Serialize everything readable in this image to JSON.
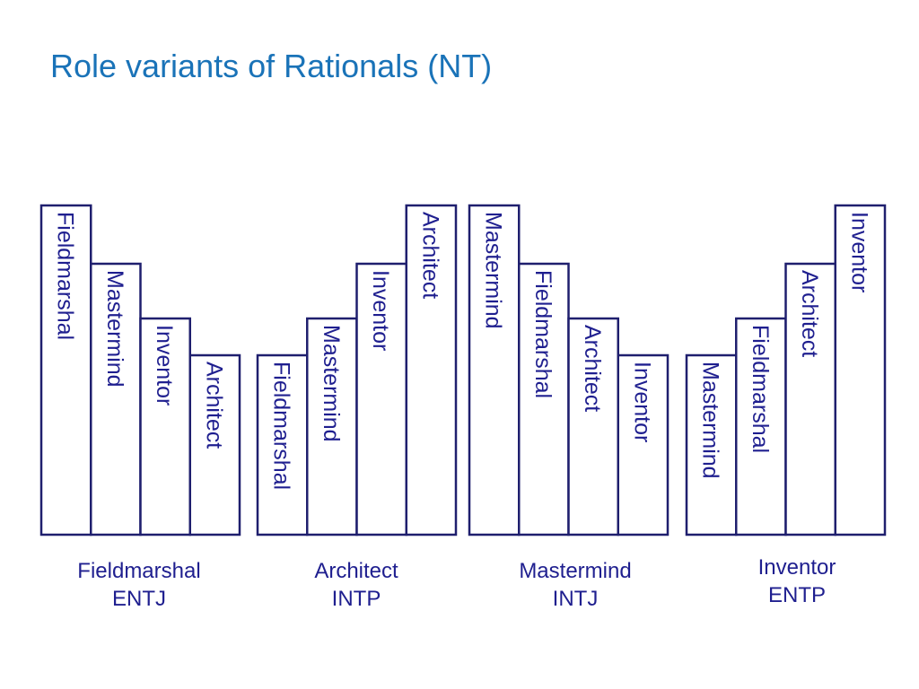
{
  "title": "Role variants of Rationals (NT)",
  "colors": {
    "title": "#1a73b8",
    "text": "#1f1f8f",
    "stroke": "#1f1f6e"
  },
  "groups": [
    {
      "type": "Fieldmarshal",
      "code": "ENTJ",
      "bars": [
        {
          "label": "Fieldmarshal",
          "rank": 4
        },
        {
          "label": "Mastermind",
          "rank": 3
        },
        {
          "label": "Inventor",
          "rank": 2
        },
        {
          "label": "Architect",
          "rank": 1
        }
      ]
    },
    {
      "type": "Architect",
      "code": "INTP",
      "bars": [
        {
          "label": "Fieldmarshal",
          "rank": 1
        },
        {
          "label": "Mastermind",
          "rank": 2
        },
        {
          "label": "Inventor",
          "rank": 3
        },
        {
          "label": "Architect",
          "rank": 4
        }
      ]
    },
    {
      "type": "Mastermind",
      "code": "INTJ",
      "bars": [
        {
          "label": "Mastermind",
          "rank": 4
        },
        {
          "label": "Fieldmarshal",
          "rank": 3
        },
        {
          "label": "Architect",
          "rank": 2
        },
        {
          "label": "Inventor",
          "rank": 1
        }
      ]
    },
    {
      "type": "Inventor",
      "code": "ENTP",
      "bars": [
        {
          "label": "Mastermind",
          "rank": 1
        },
        {
          "label": "Fieldmarshal",
          "rank": 2
        },
        {
          "label": "Architect",
          "rank": 3
        },
        {
          "label": "Inventor",
          "rank": 4
        }
      ]
    }
  ]
}
